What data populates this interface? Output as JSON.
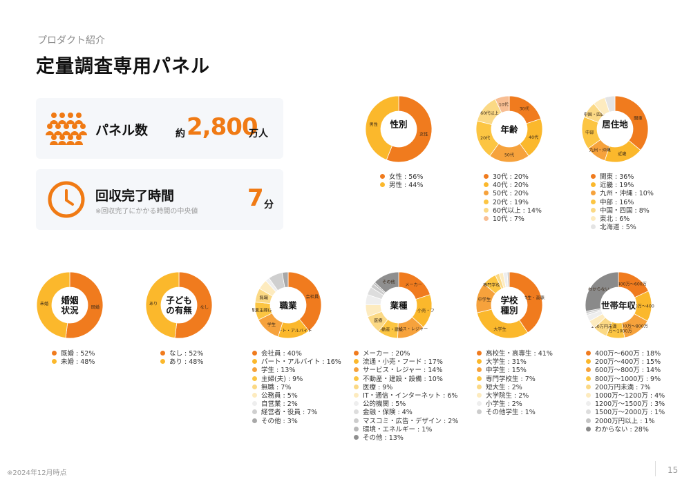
{
  "header": {
    "subtitle": "プロダクト紹介",
    "title": "定量調査専用パネル"
  },
  "stats": {
    "panel": {
      "label": "パネル数",
      "prefix": "約",
      "value": "2,800",
      "unit": "万人"
    },
    "time": {
      "label": "回収完了時間",
      "note": "※回収完了にかかる時間の中央値",
      "value": "7",
      "unit": "分"
    }
  },
  "footer": {
    "note": "※2024年12月時点",
    "page": "15"
  },
  "chart_data": [
    {
      "type": "pie",
      "title": "性別",
      "slices": [
        {
          "label": "女性",
          "value": 56,
          "legend": "女性 : 56%",
          "color": "#f07b1e"
        },
        {
          "label": "男性",
          "value": 44,
          "legend": "男性 : 44%",
          "color": "#fbb82c"
        }
      ]
    },
    {
      "type": "pie",
      "title": "年齢",
      "slices": [
        {
          "label": "30代",
          "value": 20,
          "legend": "30代 : 20%",
          "color": "#f07b1e"
        },
        {
          "label": "40代",
          "value": 20,
          "legend": "40代 : 20%",
          "color": "#fbb82c"
        },
        {
          "label": "50代",
          "value": 20,
          "legend": "50代 : 20%",
          "color": "#f6a23c"
        },
        {
          "label": "20代",
          "value": 19,
          "legend": "20代 : 19%",
          "color": "#fcc542"
        },
        {
          "label": "60代以上",
          "value": 14,
          "legend": "60代以上 : 14%",
          "color": "#fbd985"
        },
        {
          "label": "10代",
          "value": 7,
          "legend": "10代 : 7%",
          "color": "#f8be93"
        }
      ]
    },
    {
      "type": "pie",
      "title": "居住地",
      "slices": [
        {
          "label": "関東",
          "value": 36,
          "legend": "関東 : 36%",
          "color": "#f07b1e"
        },
        {
          "label": "近畿",
          "value": 19,
          "legend": "近畿 : 19%",
          "color": "#fbb82c"
        },
        {
          "label": "九州・沖縄",
          "value": 10,
          "legend": "九州・沖縄 : 10%",
          "color": "#f6a23c"
        },
        {
          "label": "中部",
          "value": 16,
          "legend": "中部 : 16%",
          "color": "#fcc542"
        },
        {
          "label": "中国・四国",
          "value": 8,
          "legend": "中国・四国 : 8%",
          "color": "#fbd985"
        },
        {
          "label": "",
          "value": 6,
          "legend": "東北 : 6%",
          "color": "#fdebbf"
        },
        {
          "label": "",
          "value": 5,
          "legend": "北海道 : 5%",
          "color": "#e4e4e4"
        }
      ]
    },
    {
      "type": "pie",
      "title": "婚姻状況",
      "slices": [
        {
          "label": "既婚",
          "value": 52,
          "legend": "既婚 : 52%",
          "color": "#f07b1e"
        },
        {
          "label": "未婚",
          "value": 48,
          "legend": "未婚 : 48%",
          "color": "#fbb82c"
        }
      ]
    },
    {
      "type": "pie",
      "title": "子どもの有無",
      "slices": [
        {
          "label": "なし",
          "value": 52,
          "legend": "なし : 52%",
          "color": "#f07b1e"
        },
        {
          "label": "あり",
          "value": 48,
          "legend": "あり : 48%",
          "color": "#fbb82c"
        }
      ]
    },
    {
      "type": "pie",
      "title": "職業",
      "slices": [
        {
          "label": "会社員",
          "value": 40,
          "legend": "会社員 : 40%",
          "color": "#f07b1e"
        },
        {
          "label": "パート・アルバイト",
          "value": 16,
          "legend": "パート・アルバイト : 16%",
          "color": "#fbb82c"
        },
        {
          "label": "学生",
          "value": 13,
          "legend": "学生 : 13%",
          "color": "#f6a23c"
        },
        {
          "label": "専業主婦(夫)",
          "value": 9,
          "legend": "主婦(夫) : 9%",
          "color": "#fcc542"
        },
        {
          "label": "無職",
          "value": 7,
          "legend": "無職 : 7%",
          "color": "#fbd985"
        },
        {
          "label": "",
          "value": 5,
          "legend": "公務員 : 5%",
          "color": "#fdebbf"
        },
        {
          "label": "",
          "value": 2,
          "legend": "自営業 : 2%",
          "color": "#eeeeee"
        },
        {
          "label": "",
          "value": 7,
          "legend": "経営者・役員 : 7%",
          "color": "#cfcfcf"
        },
        {
          "label": "",
          "value": 3,
          "legend": "その他 : 3%",
          "color": "#a8a8a8"
        }
      ]
    },
    {
      "type": "pie",
      "title": "業種",
      "slices": [
        {
          "label": "メーカー",
          "value": 20,
          "legend": "メーカー : 20%",
          "color": "#f07b1e"
        },
        {
          "label": "流通・小売・フード",
          "value": 17,
          "legend": "流通・小売・フード : 17%",
          "color": "#fbb82c"
        },
        {
          "label": "サービス・レジャー",
          "value": 14,
          "legend": "サービス・レジャー : 14%",
          "color": "#f6a23c"
        },
        {
          "label": "不動産・建設",
          "value": 10,
          "legend": "不動産・建設・設備 : 10%",
          "color": "#fcc542"
        },
        {
          "label": "医療",
          "value": 9,
          "legend": "医療 : 9%",
          "color": "#fbd985"
        },
        {
          "label": "",
          "value": 6,
          "legend": "IT・通信・インターネット : 6%",
          "color": "#fdebbf"
        },
        {
          "label": "",
          "value": 5,
          "legend": "公的機関 : 5%",
          "color": "#eeeeee"
        },
        {
          "label": "",
          "value": 4,
          "legend": "金融・保険 : 4%",
          "color": "#dddddd"
        },
        {
          "label": "",
          "value": 2,
          "legend": "マスコミ・広告・デザイン : 2%",
          "color": "#cccccc"
        },
        {
          "label": "",
          "value": 1,
          "legend": "環境・エネルギー : 1%",
          "color": "#b8b8b8"
        },
        {
          "label": "その他",
          "value": 13,
          "legend": "その他 : 13%",
          "color": "#8f8f8f"
        }
      ]
    },
    {
      "type": "pie",
      "title": "学校種別",
      "slices": [
        {
          "label": "高校生・高専生",
          "value": 41,
          "legend": "高校生・高専生 : 41%",
          "color": "#f07b1e"
        },
        {
          "label": "大学生",
          "value": 31,
          "legend": "大学生 : 31%",
          "color": "#fbb82c"
        },
        {
          "label": "中学生",
          "value": 15,
          "legend": "中学生 : 15%",
          "color": "#f6a23c"
        },
        {
          "label": "専門学校生",
          "value": 7,
          "legend": "専門学校生 : 7%",
          "color": "#fcc542"
        },
        {
          "label": "",
          "value": 2,
          "legend": "短大生 : 2%",
          "color": "#fbd985"
        },
        {
          "label": "",
          "value": 2,
          "legend": "大学院生 : 2%",
          "color": "#fdebbf"
        },
        {
          "label": "",
          "value": 2,
          "legend": "小学生 : 2%",
          "color": "#eeeeee"
        },
        {
          "label": "",
          "value": 1,
          "legend": "その他学生 : 1%",
          "color": "#cccccc"
        }
      ]
    },
    {
      "type": "pie",
      "title": "世帯年収",
      "slices": [
        {
          "label": "400万〜600万",
          "value": 18,
          "legend": "400万〜600万 : 18%",
          "color": "#f07b1e"
        },
        {
          "label": "200万〜400万",
          "value": 15,
          "legend": "200万〜400万 : 15%",
          "color": "#fbb82c"
        },
        {
          "label": "600万〜800万",
          "value": 14,
          "legend": "600万〜800万 : 14%",
          "color": "#f6a23c"
        },
        {
          "label": "800万〜1000万",
          "value": 9,
          "legend": "800万〜1000万 : 9%",
          "color": "#fcc542"
        },
        {
          "label": "200万円未満",
          "value": 7,
          "legend": "200万円未満 : 7%",
          "color": "#fbd985"
        },
        {
          "label": "",
          "value": 4,
          "legend": "1000万〜1200万 : 4%",
          "color": "#fdebbf"
        },
        {
          "label": "",
          "value": 3,
          "legend": "1200万〜1500万 : 3%",
          "color": "#eeeeee"
        },
        {
          "label": "",
          "value": 1,
          "legend": "1500万〜2000万 : 1%",
          "color": "#dddddd"
        },
        {
          "label": "",
          "value": 1,
          "legend": "2000万円以上 : 1%",
          "color": "#c4c4c4"
        },
        {
          "label": "わからない",
          "value": 28,
          "legend": "わからない : 28%",
          "color": "#8a8a8a"
        }
      ]
    }
  ]
}
